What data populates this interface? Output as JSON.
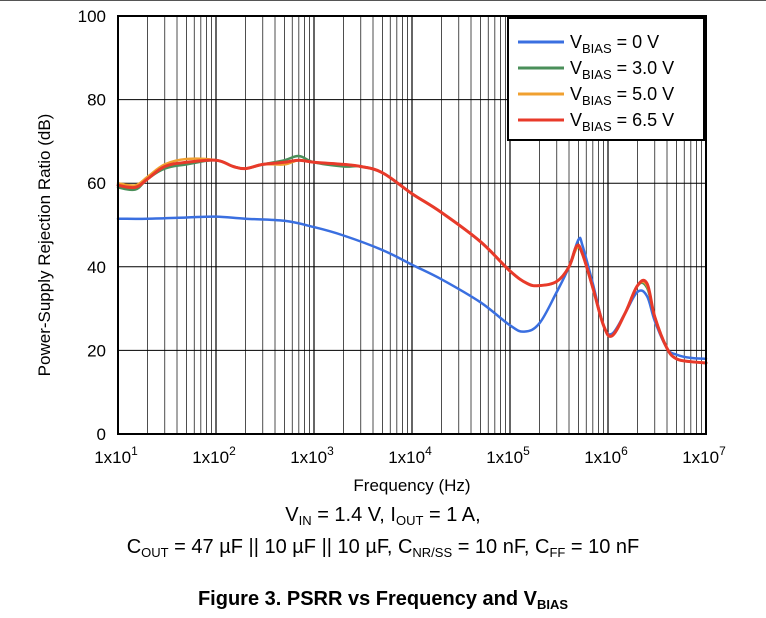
{
  "chart_data": {
    "type": "line",
    "xscale": "log",
    "xlim": [
      10,
      10000000
    ],
    "ylim": [
      0,
      100
    ],
    "grid": true,
    "xlabel": "Frequency (Hz)",
    "ylabel": "Power-Supply Rejection Ratio (dB)",
    "xticks": [
      {
        "value": 10,
        "label": "1x10",
        "exp": "1"
      },
      {
        "value": 100,
        "label": "1x10",
        "exp": "2"
      },
      {
        "value": 1000,
        "label": "1x10",
        "exp": "3"
      },
      {
        "value": 10000,
        "label": "1x10",
        "exp": "4"
      },
      {
        "value": 100000,
        "label": "1x10",
        "exp": "5"
      },
      {
        "value": 1000000,
        "label": "1x10",
        "exp": "6"
      },
      {
        "value": 10000000,
        "label": "1x10",
        "exp": "7"
      }
    ],
    "yticks": [
      0,
      20,
      40,
      60,
      80,
      100
    ],
    "legend_position": "top-right",
    "series": [
      {
        "name_main": "V",
        "name_sub": "BIAS",
        "name_rest": " = 0 V",
        "color": "#3a6fe0",
        "x": [
          10,
          20,
          50,
          100,
          200,
          500,
          1000,
          2000,
          5000,
          10000,
          20000,
          50000,
          100000,
          140000,
          200000,
          300000,
          400000,
          500000,
          550000,
          700000,
          900000,
          1100000,
          1500000,
          2000000,
          2500000,
          3000000,
          4000000,
          5000000,
          7000000,
          10000000
        ],
        "y": [
          51.5,
          51.5,
          51.8,
          52,
          51.5,
          51,
          49.5,
          47.5,
          44,
          40.5,
          37,
          31.5,
          26,
          24.5,
          26.5,
          34,
          40,
          46.5,
          45,
          36,
          26,
          24,
          29,
          34,
          33,
          27,
          20.5,
          19,
          18.2,
          18
        ]
      },
      {
        "name_main": "V",
        "name_sub": "BIAS",
        "name_rest": " = 3.0 V",
        "color": "#4a8f5a",
        "x": [
          10,
          15,
          20,
          30,
          50,
          100,
          150,
          200,
          300,
          500,
          700,
          1000,
          2000,
          3000,
          5000,
          10000,
          20000,
          50000,
          100000,
          150000,
          200000,
          300000,
          400000,
          480000,
          550000,
          700000,
          900000,
          1100000,
          1500000,
          2000000,
          2500000,
          3000000,
          4000000,
          5000000,
          7000000,
          10000000
        ],
        "y": [
          59,
          58.5,
          61,
          63.5,
          64.5,
          65.5,
          64,
          63.5,
          64.5,
          65.5,
          66.5,
          65,
          64,
          64,
          62.5,
          57.5,
          53,
          46,
          39,
          36,
          35.5,
          36.5,
          40,
          44.5,
          43,
          35,
          26,
          23.5,
          29,
          35.5,
          35,
          28,
          20.5,
          18,
          17.3,
          17
        ]
      },
      {
        "name_main": "V",
        "name_sub": "BIAS",
        "name_rest": " = 5.0 V",
        "color": "#f0a030",
        "x": [
          10,
          15,
          20,
          30,
          50,
          100,
          150,
          200,
          300,
          500,
          700,
          1000,
          2000,
          3000,
          5000,
          10000,
          20000,
          50000,
          100000,
          150000,
          200000,
          300000,
          400000,
          480000,
          550000,
          700000,
          900000,
          1100000,
          1500000,
          2000000,
          2500000,
          3000000,
          4000000,
          5000000,
          7000000,
          10000000
        ],
        "y": [
          60,
          59.5,
          61.5,
          64.5,
          65.8,
          65.5,
          64,
          63.5,
          64.5,
          64.5,
          65.5,
          65,
          64.5,
          64,
          62.5,
          57.5,
          53,
          46,
          39,
          36,
          35.5,
          36.5,
          40,
          44.5,
          43,
          35,
          26,
          23.5,
          29,
          35.5,
          35.5,
          28,
          20.5,
          18,
          17.3,
          17
        ]
      },
      {
        "name_main": "V",
        "name_sub": "BIAS",
        "name_rest": " = 6.5 V",
        "color": "#e83a2a",
        "x": [
          10,
          15,
          20,
          30,
          50,
          100,
          150,
          200,
          300,
          500,
          700,
          1000,
          2000,
          3000,
          5000,
          10000,
          20000,
          50000,
          100000,
          150000,
          200000,
          300000,
          400000,
          480000,
          550000,
          700000,
          900000,
          1100000,
          1500000,
          2000000,
          2500000,
          3000000,
          4000000,
          5000000,
          7000000,
          10000000
        ],
        "y": [
          59.5,
          59,
          61,
          64,
          65,
          65.5,
          64,
          63.5,
          64.5,
          65,
          65.5,
          65,
          64.5,
          64,
          62.5,
          57.5,
          53,
          46,
          39,
          36,
          35.5,
          36.5,
          40,
          45,
          43,
          35,
          26,
          23.5,
          29,
          35.5,
          36,
          28,
          20.5,
          18,
          17.3,
          17
        ]
      }
    ]
  },
  "conditions": {
    "vin_main": "V",
    "vin_sub": "IN",
    "vin_rest": " = 1.4 V, ",
    "iout_main": "I",
    "iout_sub": "OUT",
    "iout_rest": " = 1 A,",
    "cout_main": "C",
    "cout_sub": "OUT",
    "cout_rest": " = 47 µF || 10 µF || 10 µF, ",
    "cnr_main": "C",
    "cnr_sub": "NR/SS",
    "cnr_rest": " = 10 nF, ",
    "cff_main": "C",
    "cff_sub": "FF",
    "cff_rest": " = 10 nF"
  },
  "caption": {
    "text": "Figure 3. PSRR vs Frequency and V",
    "sub": "BIAS"
  }
}
